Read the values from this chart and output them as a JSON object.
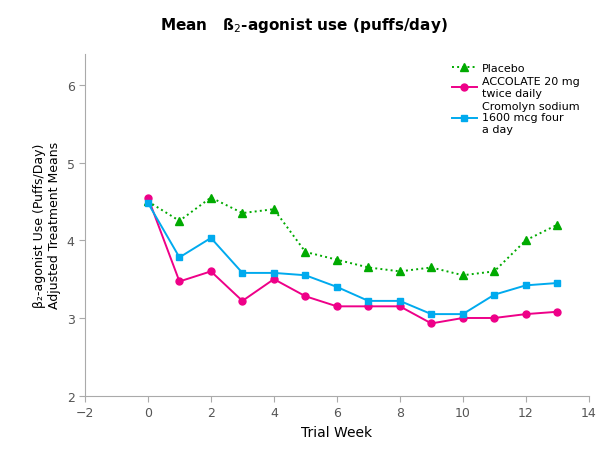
{
  "xlabel": "Trial Week",
  "ylabel": "β₂-agonist Use (Puffs/Day)\nAdjusted Treatment Means",
  "xlim": [
    -2,
    14
  ],
  "ylim": [
    2,
    6.4
  ],
  "yticks": [
    2,
    3,
    4,
    5,
    6
  ],
  "xticks": [
    -2,
    0,
    2,
    4,
    6,
    8,
    10,
    12,
    14
  ],
  "placebo_x": [
    0,
    1,
    2,
    3,
    4,
    5,
    6,
    7,
    8,
    9,
    10,
    11,
    12,
    13
  ],
  "placebo_y": [
    4.5,
    4.25,
    4.55,
    4.35,
    4.4,
    3.85,
    3.75,
    3.65,
    3.6,
    3.65,
    3.55,
    3.6,
    4.0,
    4.2
  ],
  "accolate_x": [
    0,
    1,
    2,
    3,
    4,
    5,
    6,
    7,
    8,
    9,
    10,
    11,
    12,
    13
  ],
  "accolate_y": [
    4.55,
    3.47,
    3.6,
    3.22,
    3.5,
    3.28,
    3.15,
    3.15,
    3.15,
    2.93,
    3.0,
    3.0,
    3.05,
    3.08
  ],
  "cromolyn_x": [
    0,
    1,
    2,
    3,
    4,
    5,
    6,
    7,
    8,
    9,
    10,
    11,
    12,
    13
  ],
  "cromolyn_y": [
    4.48,
    3.78,
    4.03,
    3.58,
    3.58,
    3.55,
    3.4,
    3.22,
    3.22,
    3.05,
    3.05,
    3.3,
    3.42,
    3.45
  ],
  "placebo_color": "#00aa00",
  "accolate_color": "#ee0088",
  "cromolyn_color": "#00aaee",
  "background_color": "#ffffff",
  "legend_labels": [
    "Placebo",
    "ACCOLATE 20 mg\ntwice daily",
    "Cromolyn sodium\n1600 mcg four\na day"
  ],
  "spine_color": "#aaaaaa",
  "tick_color": "#555555",
  "title_fontsize": 11,
  "axis_fontsize": 9,
  "legend_fontsize": 8,
  "marker_size_tri": 6,
  "marker_size_circ": 5,
  "marker_size_sq": 5,
  "linewidth": 1.4
}
